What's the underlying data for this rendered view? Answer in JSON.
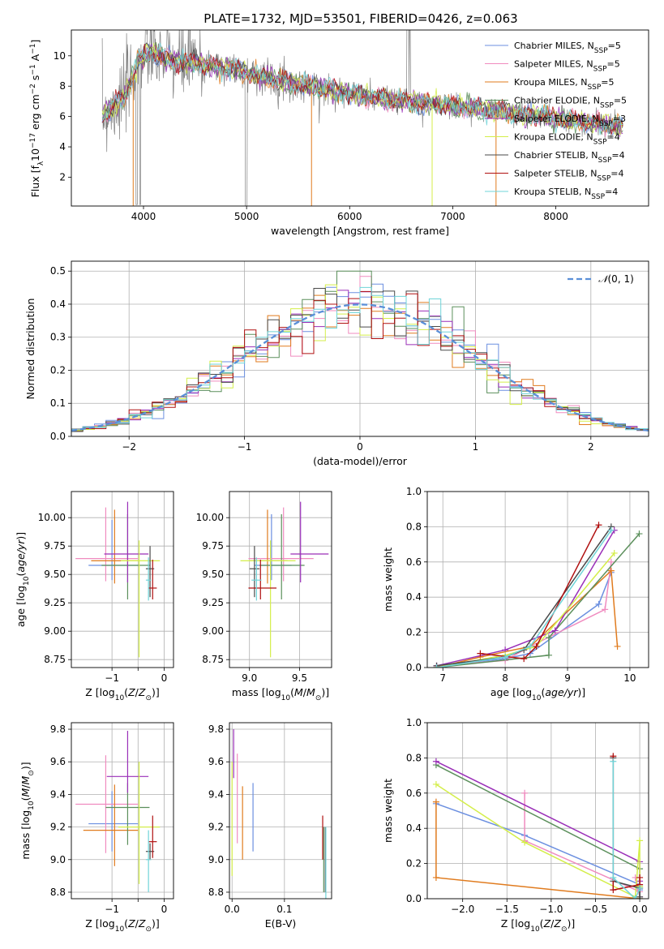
{
  "title": "PLATE=1732, MJD=53501, FIBERID=0426, z=0.063",
  "colors": {
    "chabrier_miles": "#6b8fe0",
    "salpeter_miles": "#f08bbf",
    "kroupa_miles": "#e07b1e",
    "chabrier_elodie": "#5b8f5b",
    "salpeter_elodie": "#9a2fb8",
    "kroupa_elodie": "#d4ee4a",
    "chabrier_stelib": "#4a4a4a",
    "salpeter_stelib": "#b01010",
    "kroupa_stelib": "#6fd4d8",
    "data": "#808080",
    "gaussian": "#5a8fd8"
  },
  "chart_data": [
    {
      "id": "spectrum",
      "type": "line",
      "title": "PLATE=1732, MJD=53501, FIBERID=0426, z=0.063",
      "xlabel": "wavelength [Angstrom, rest frame]",
      "ylabel": "Flux [f_λ 10^-17 erg cm^-2 s^-1 A^-1]",
      "xlim": [
        3300,
        8900
      ],
      "ylim": [
        0.1,
        11.7
      ],
      "xticks": [
        4000,
        5000,
        6000,
        7000,
        8000
      ],
      "yticks": [
        2,
        4,
        6,
        8,
        10
      ],
      "grid": false,
      "legend": "top-right",
      "continuum": {
        "x": [
          3600,
          3700,
          3800,
          3950,
          4050,
          4150,
          4300,
          4500,
          4700,
          4900,
          5100,
          5300,
          5500,
          5800,
          6100,
          6400,
          6700,
          7000,
          7300,
          7600,
          7900,
          8200,
          8500,
          8650
        ],
        "y": [
          6.1,
          6.6,
          7.1,
          9.6,
          10.3,
          10.0,
          9.6,
          9.5,
          9.3,
          9.1,
          8.7,
          8.4,
          8.1,
          7.8,
          7.4,
          7.1,
          6.9,
          6.7,
          6.5,
          6.2,
          6.0,
          5.7,
          5.4,
          5.3
        ]
      },
      "series": [
        {
          "name": "Chabrier MILES, N_SSP=5",
          "color_key": "chabrier_miles"
        },
        {
          "name": "Salpeter MILES, N_SSP=5",
          "color_key": "salpeter_miles"
        },
        {
          "name": "Kroupa MILES, N_SSP=5",
          "color_key": "kroupa_miles"
        },
        {
          "name": "Chabrier ELODIE, N_SSP=5",
          "color_key": "chabrier_elodie"
        },
        {
          "name": "Salpeter ELODIE, N_SSP=3",
          "color_key": "salpeter_elodie"
        },
        {
          "name": "Kroupa ELODIE, N_SSP=4",
          "color_key": "kroupa_elodie"
        },
        {
          "name": "Chabrier STELIB, N_SSP=4",
          "color_key": "chabrier_stelib"
        },
        {
          "name": "Salpeter STELIB, N_SSP=4",
          "color_key": "salpeter_stelib"
        },
        {
          "name": "Kroupa STELIB, N_SSP=4",
          "color_key": "kroupa_stelib"
        }
      ]
    },
    {
      "id": "residuals",
      "type": "bar",
      "xlabel": "(data-model)/error",
      "ylabel": "Normed distribution",
      "xlim": [
        -2.5,
        2.5
      ],
      "ylim": [
        0,
        0.53
      ],
      "xticks": [
        -2,
        -1,
        0,
        1,
        2
      ],
      "yticks": [
        0.0,
        0.1,
        0.2,
        0.3,
        0.4,
        0.5
      ],
      "grid": true,
      "legend": "top-right",
      "gaussian_label": "N(0,1)",
      "bin_width": 0.1
    },
    {
      "id": "z_age",
      "type": "scatter",
      "xlabel": "Z [log10(Z/Z⊙)]",
      "ylabel": "age [log10(age/yr)]",
      "xlim": [
        -1.78,
        0.18
      ],
      "ylim": [
        8.68,
        10.23
      ],
      "xticks": [
        -1,
        -0.5,
        0
      ],
      "xticklabels": [
        "−1",
        "",
        "0"
      ],
      "yticks": [
        8.75,
        9.0,
        9.25,
        9.5,
        9.75,
        10.0
      ],
      "grid": true,
      "points": [
        {
          "k": "chabrier_miles",
          "x": -1.0,
          "xe": [
            0.45,
            0.5
          ],
          "y": 9.58,
          "ye": [
            0.13,
            0.4
          ]
        },
        {
          "k": "salpeter_miles",
          "x": -1.12,
          "xe": [
            0.58,
            0.62
          ],
          "y": 9.64,
          "ye": [
            0.2,
            0.45
          ]
        },
        {
          "k": "kroupa_miles",
          "x": -0.95,
          "xe": [
            0.45,
            0.45
          ],
          "y": 9.62,
          "ye": [
            0.2,
            0.45
          ]
        },
        {
          "k": "chabrier_elodie",
          "x": -0.7,
          "xe": [
            0.5,
            0.42
          ],
          "y": 9.58,
          "ye": [
            0.3,
            0.45
          ]
        },
        {
          "k": "salpeter_elodie",
          "x": -0.7,
          "xe": [
            0.45,
            0.4
          ],
          "y": 9.68,
          "ye": [
            0.25,
            0.46
          ]
        },
        {
          "k": "kroupa_elodie",
          "x": -0.48,
          "xe": [
            0.35,
            0.4
          ],
          "y": 9.62,
          "ye": [
            0.85,
            0.18
          ]
        },
        {
          "k": "chabrier_stelib",
          "x": -0.27,
          "xe": [
            0.08,
            0.08
          ],
          "y": 9.55,
          "ye": [
            0.25,
            0.2
          ]
        },
        {
          "k": "salpeter_stelib",
          "x": -0.22,
          "xe": [
            0.08,
            0.08
          ],
          "y": 9.38,
          "ye": [
            0.1,
            0.25
          ]
        },
        {
          "k": "kroupa_stelib",
          "x": -0.3,
          "xe": [
            0.05,
            0.05
          ],
          "y": 9.45,
          "ye": [
            0.18,
            0.2
          ]
        }
      ]
    },
    {
      "id": "mass_age",
      "type": "scatter",
      "xlabel": "mass [log10(M/M⊙)]",
      "ylabel": "",
      "xlim": [
        8.8,
        9.82
      ],
      "ylim": [
        8.68,
        10.23
      ],
      "xticks": [
        9.0,
        9.5
      ],
      "yticks": [
        8.75,
        9.0,
        9.25,
        9.5,
        9.75,
        10.0
      ],
      "grid": true,
      "points": [
        {
          "k": "chabrier_miles",
          "x": 9.22,
          "xe": [
            0.17,
            0.2
          ],
          "y": 9.58,
          "ye": [
            0.13,
            0.45
          ]
        },
        {
          "k": "salpeter_miles",
          "x": 9.34,
          "xe": [
            0.35,
            0.3
          ],
          "y": 9.64,
          "ye": [
            0.2,
            0.45
          ]
        },
        {
          "k": "kroupa_miles",
          "x": 9.18,
          "xe": [
            0.18,
            0.2
          ],
          "y": 9.62,
          "ye": [
            0.2,
            0.45
          ]
        },
        {
          "k": "chabrier_elodie",
          "x": 9.32,
          "xe": [
            0.22,
            0.23
          ],
          "y": 9.58,
          "ye": [
            0.3,
            0.45
          ]
        },
        {
          "k": "salpeter_elodie",
          "x": 9.51,
          "xe": [
            0.1,
            0.28
          ],
          "y": 9.68,
          "ye": [
            0.25,
            0.46
          ]
        },
        {
          "k": "kroupa_elodie",
          "x": 9.21,
          "xe": [
            0.3,
            0.25
          ],
          "y": 9.62,
          "ye": [
            0.85,
            0.18
          ]
        },
        {
          "k": "chabrier_stelib",
          "x": 9.05,
          "xe": [
            0.05,
            0.05
          ],
          "y": 9.55,
          "ye": [
            0.25,
            0.2
          ]
        },
        {
          "k": "salpeter_stelib",
          "x": 9.11,
          "xe": [
            0.12,
            0.16
          ],
          "y": 9.38,
          "ye": [
            0.1,
            0.25
          ]
        },
        {
          "k": "kroupa_stelib",
          "x": 9.07,
          "xe": [
            0.05,
            0.05
          ],
          "y": 9.45,
          "ye": [
            0.18,
            0.2
          ]
        }
      ]
    },
    {
      "id": "age_weight",
      "type": "line",
      "xlabel": "age [log10(age/yr)]",
      "ylabel": "mass weight",
      "xlim": [
        6.75,
        10.3
      ],
      "ylim": [
        0,
        1.0
      ],
      "xticks": [
        7,
        8,
        9,
        10
      ],
      "yticks": [
        0.0,
        0.2,
        0.4,
        0.6,
        0.8,
        1.0
      ],
      "grid": true,
      "series": [
        {
          "k": "chabrier_miles",
          "x": [
            6.9,
            8.0,
            8.4,
            9.5,
            9.7
          ],
          "y": [
            0.01,
            0.05,
            0.08,
            0.36,
            0.54
          ]
        },
        {
          "k": "salpeter_miles",
          "x": [
            6.9,
            8.0,
            8.4,
            9.6,
            9.7
          ],
          "y": [
            0.01,
            0.04,
            0.12,
            0.33,
            0.6
          ]
        },
        {
          "k": "kroupa_miles",
          "x": [
            6.9,
            7.6,
            8.4,
            9.7,
            9.8
          ],
          "y": [
            0.0,
            0.06,
            0.12,
            0.55,
            0.12
          ]
        },
        {
          "k": "chabrier_elodie",
          "x": [
            6.9,
            8.7,
            8.7,
            10.15
          ],
          "y": [
            0.0,
            0.07,
            0.17,
            0.76
          ]
        },
        {
          "k": "salpeter_elodie",
          "x": [
            6.9,
            8.0,
            8.8,
            9.75
          ],
          "y": [
            0.01,
            0.1,
            0.21,
            0.78
          ]
        },
        {
          "k": "kroupa_elodie",
          "x": [
            6.9,
            8.0,
            8.5,
            9.75
          ],
          "y": [
            0.0,
            0.07,
            0.12,
            0.65
          ]
        },
        {
          "k": "chabrier_stelib",
          "x": [
            6.9,
            8.0,
            8.3,
            9.7
          ],
          "y": [
            0.01,
            0.06,
            0.1,
            0.8
          ]
        },
        {
          "k": "salpeter_stelib",
          "x": [
            7.6,
            8.3,
            8.5,
            9.5
          ],
          "y": [
            0.08,
            0.05,
            0.12,
            0.81
          ]
        },
        {
          "k": "kroupa_stelib",
          "x": [
            6.9,
            8.0,
            8.4,
            9.7
          ],
          "y": [
            0.0,
            0.06,
            0.12,
            0.78
          ]
        }
      ]
    },
    {
      "id": "z_mass",
      "type": "scatter",
      "xlabel": "Z [log10(Z/Z⊙)]",
      "ylabel": "mass [log10(M/M⊙)]",
      "xlim": [
        -1.78,
        0.18
      ],
      "ylim": [
        8.76,
        9.84
      ],
      "xticks": [
        -1,
        -0.5,
        0
      ],
      "xticklabels": [
        "−1",
        "",
        "0"
      ],
      "yticks": [
        8.8,
        9.0,
        9.2,
        9.4,
        9.6,
        9.8
      ],
      "grid": true,
      "points": [
        {
          "k": "chabrier_miles",
          "x": -1.0,
          "xe": [
            0.45,
            0.5
          ],
          "y": 9.22,
          "ye": [
            0.17,
            0.2
          ]
        },
        {
          "k": "salpeter_miles",
          "x": -1.12,
          "xe": [
            0.58,
            0.62
          ],
          "y": 9.34,
          "ye": [
            0.3,
            0.3
          ]
        },
        {
          "k": "kroupa_miles",
          "x": -0.95,
          "xe": [
            0.6,
            0.45
          ],
          "y": 9.18,
          "ye": [
            0.22,
            0.28
          ]
        },
        {
          "k": "chabrier_elodie",
          "x": -0.7,
          "xe": [
            0.42,
            0.42
          ],
          "y": 9.32,
          "ye": [
            0.23,
            0.15
          ]
        },
        {
          "k": "salpeter_elodie",
          "x": -0.7,
          "xe": [
            0.4,
            0.4
          ],
          "y": 9.51,
          "ye": [
            0.1,
            0.28
          ]
        },
        {
          "k": "kroupa_elodie",
          "x": -0.48,
          "xe": [
            0.4,
            0.4
          ],
          "y": 9.2,
          "ye": [
            0.35,
            0.4
          ]
        },
        {
          "k": "chabrier_stelib",
          "x": -0.27,
          "xe": [
            0.08,
            0.08
          ],
          "y": 9.05,
          "ye": [
            0.05,
            0.05
          ]
        },
        {
          "k": "salpeter_stelib",
          "x": -0.22,
          "xe": [
            0.08,
            0.08
          ],
          "y": 9.11,
          "ye": [
            0.1,
            0.16
          ]
        },
        {
          "k": "kroupa_stelib",
          "x": -0.3,
          "xe": [
            0.05,
            0.05
          ],
          "y": 9.0,
          "ye": [
            0.2,
            0.18
          ]
        }
      ]
    },
    {
      "id": "ebv_mass",
      "type": "scatter",
      "xlabel": "E(B-V)",
      "ylabel": "",
      "xlim": [
        -0.005,
        0.19
      ],
      "ylim": [
        8.76,
        9.84
      ],
      "xticks": [
        0.0,
        0.1
      ],
      "yticks": [
        8.8,
        9.0,
        9.2,
        9.4,
        9.6,
        9.8
      ],
      "grid": true,
      "points": [
        {
          "k": "chabrier_miles",
          "x": 0.04,
          "xe": [
            0,
            0
          ],
          "y": 9.25,
          "ye": [
            0.2,
            0.22
          ]
        },
        {
          "k": "salpeter_miles",
          "x": 0.01,
          "xe": [
            0,
            0
          ],
          "y": 9.4,
          "ye": [
            0.3,
            0.25
          ]
        },
        {
          "k": "kroupa_miles",
          "x": 0.02,
          "xe": [
            0,
            0
          ],
          "y": 9.2,
          "ye": [
            0.2,
            0.25
          ]
        },
        {
          "k": "chabrier_elodie",
          "x": 0.175,
          "xe": [
            0,
            0
          ],
          "y": 9.0,
          "ye": [
            0.2,
            0.2
          ]
        },
        {
          "k": "salpeter_elodie",
          "x": 0.003,
          "xe": [
            0,
            0
          ],
          "y": 9.6,
          "ye": [
            0.1,
            0.2
          ]
        },
        {
          "k": "kroupa_elodie",
          "x": 0.0,
          "xe": [
            0,
            0
          ],
          "y": 9.2,
          "ye": [
            0.3,
            0.4
          ]
        },
        {
          "k": "chabrier_stelib",
          "x": 0.178,
          "xe": [
            0,
            0
          ],
          "y": 9.0,
          "ye": [
            0.2,
            0.2
          ]
        },
        {
          "k": "salpeter_stelib",
          "x": 0.173,
          "xe": [
            0,
            0
          ],
          "y": 9.1,
          "ye": [
            0.1,
            0.17
          ]
        },
        {
          "k": "kroupa_stelib",
          "x": 0.179,
          "xe": [
            0,
            0
          ],
          "y": 8.95,
          "ye": [
            0.2,
            0.25
          ]
        }
      ]
    },
    {
      "id": "z_weight",
      "type": "line",
      "xlabel": "Z [log10(Z/Z⊙)]",
      "ylabel": "mass weight",
      "xlim": [
        -2.4,
        0.1
      ],
      "ylim": [
        0,
        1.0
      ],
      "xticks": [
        -2.0,
        -1.5,
        -1.0,
        -0.5,
        0.0
      ],
      "yticks": [
        0.0,
        0.2,
        0.4,
        0.6,
        0.8,
        1.0
      ],
      "grid": true,
      "series": [
        {
          "k": "chabrier_miles",
          "x": [
            -2.3,
            -1.3,
            0.0,
            0.0,
            0.0
          ],
          "y": [
            0.54,
            0.36,
            0.08,
            0.05,
            0.01
          ]
        },
        {
          "k": "salpeter_miles",
          "x": [
            -1.3,
            -1.3,
            0.0,
            -0.05,
            0.0
          ],
          "y": [
            0.6,
            0.33,
            0.04,
            0.12,
            0.01
          ]
        },
        {
          "k": "kroupa_miles",
          "x": [
            -2.3,
            -2.3,
            0.0,
            0.0
          ],
          "y": [
            0.55,
            0.12,
            0.0,
            0.06
          ]
        },
        {
          "k": "chabrier_elodie",
          "x": [
            -2.3,
            0.0,
            0.0,
            0.0
          ],
          "y": [
            0.76,
            0.17,
            0.07,
            0.0
          ]
        },
        {
          "k": "salpeter_elodie",
          "x": [
            -2.3,
            0.0,
            0.0
          ],
          "y": [
            0.78,
            0.21,
            0.1
          ]
        },
        {
          "k": "kroupa_elodie",
          "x": [
            -2.3,
            -1.3,
            -0.05,
            0.0,
            0.0
          ],
          "y": [
            0.65,
            0.32,
            0.01,
            0.33,
            0.07
          ]
        },
        {
          "k": "chabrier_stelib",
          "x": [
            -0.3,
            -0.3,
            0.0,
            0.0
          ],
          "y": [
            0.8,
            0.1,
            0.06,
            0.01
          ]
        },
        {
          "k": "salpeter_stelib",
          "x": [
            -0.3,
            -0.3,
            0.0,
            0.0
          ],
          "y": [
            0.81,
            0.05,
            0.08,
            0.12
          ]
        },
        {
          "k": "kroupa_stelib",
          "x": [
            -0.3,
            -0.3,
            -0.05,
            0.0
          ],
          "y": [
            0.78,
            0.12,
            0.0,
            0.06
          ]
        }
      ]
    }
  ]
}
